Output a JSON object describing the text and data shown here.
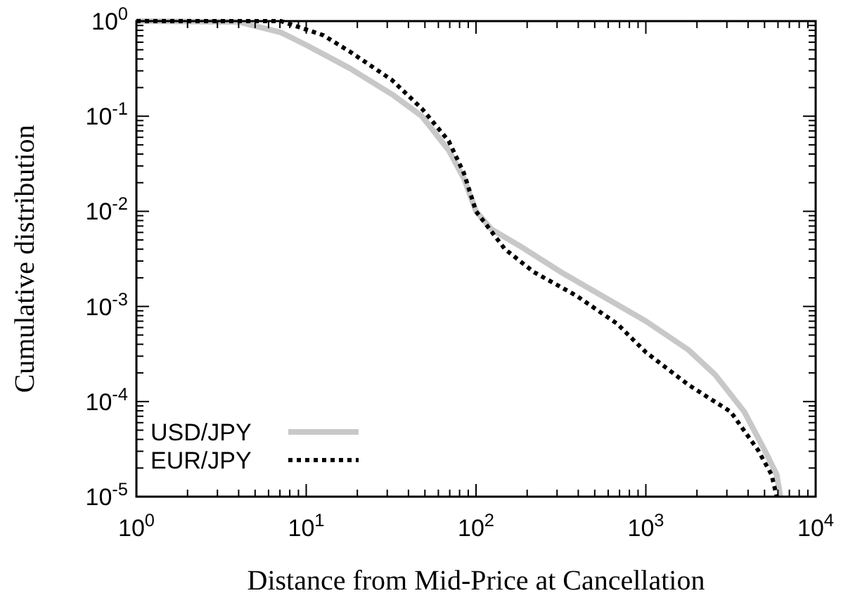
{
  "chart_data": {
    "type": "line",
    "xlabel": "Distance from Mid-Price at Cancellation",
    "ylabel": "Cumulative distribution",
    "log": "xy",
    "xlim": [
      1,
      10000
    ],
    "ylim": [
      1e-05,
      1
    ],
    "xticks": [
      {
        "value": 1,
        "label": "10$^{0}$"
      },
      {
        "value": 10,
        "label": "10$^{1}$"
      },
      {
        "value": 100,
        "label": "10$^{2}$"
      },
      {
        "value": 1000,
        "label": "10$^{3}$"
      },
      {
        "value": 10000,
        "label": "10$^{4}$"
      }
    ],
    "yticks": [
      {
        "value": 1e-05,
        "label": "10$^{-5}$"
      },
      {
        "value": 0.0001,
        "label": "10$^{-4}$"
      },
      {
        "value": 0.001,
        "label": "10$^{-3}$"
      },
      {
        "value": 0.01,
        "label": "10$^{-2}$"
      },
      {
        "value": 0.1,
        "label": "10$^{-1}$"
      },
      {
        "value": 1,
        "label": "10$^{0}$"
      }
    ],
    "grid": false,
    "legend": "bottom left",
    "series": [
      {
        "name": "USD/JPY",
        "color": "#c8c8c8",
        "line_style": "solid",
        "x": [
          1,
          4,
          7.1,
          10,
          18,
          32,
          48,
          69,
          85,
          100,
          123,
          182,
          316,
          550,
          1000,
          1780,
          2570,
          3800,
          5000,
          5900,
          6200
        ],
        "values": [
          1,
          0.98,
          0.76,
          0.56,
          0.32,
          0.17,
          0.1,
          0.044,
          0.022,
          0.01,
          0.0065,
          0.0043,
          0.0023,
          0.0013,
          0.0007,
          0.00035,
          0.00019,
          7.8e-05,
          3.1e-05,
          1.7e-05,
          1e-05
        ]
      },
      {
        "name": "EUR/JPY",
        "color": "#000000",
        "line_style": "dotted",
        "x": [
          1,
          7.1,
          12.6,
          18,
          32,
          48,
          69,
          85,
          100,
          148,
          219,
          389,
          676,
          1000,
          1780,
          3160,
          4570,
          5500,
          5900
        ],
        "values": [
          1,
          1,
          0.71,
          0.48,
          0.24,
          0.12,
          0.055,
          0.025,
          0.01,
          0.004,
          0.0023,
          0.0013,
          0.00066,
          0.00033,
          0.00015,
          7.8e-05,
          3.1e-05,
          1.7e-05,
          1e-05
        ]
      }
    ]
  }
}
